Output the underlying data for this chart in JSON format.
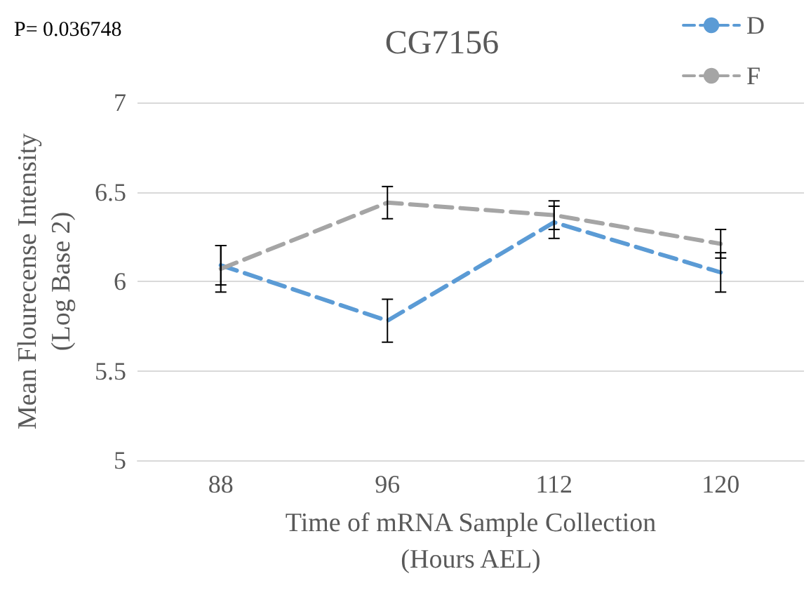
{
  "chart_data": {
    "type": "line",
    "title": "CG7156",
    "xlabel": "Time of mRNA Sample Collection\n(Hours AEL)",
    "ylabel": "Mean Flourecense Intensity\n(Log Base 2)",
    "annotations": [
      "P= 0.036748"
    ],
    "categories": [
      "88",
      "96",
      "112",
      "120"
    ],
    "series": [
      {
        "name": "D",
        "color": "#5b9bd5",
        "values": [
          6.09,
          5.78,
          6.33,
          6.05
        ],
        "errors": [
          0.11,
          0.12,
          0.09,
          0.11
        ]
      },
      {
        "name": "F",
        "color": "#a5a5a5",
        "values": [
          6.07,
          6.44,
          6.37,
          6.21
        ],
        "errors": [
          0.13,
          0.09,
          0.08,
          0.08
        ]
      }
    ],
    "ylim": [
      5,
      7
    ],
    "yticks": [
      5,
      5.5,
      6,
      6.5,
      7
    ],
    "grid": "y",
    "legend": "top right",
    "marker": "none",
    "line_style": "dashed"
  }
}
